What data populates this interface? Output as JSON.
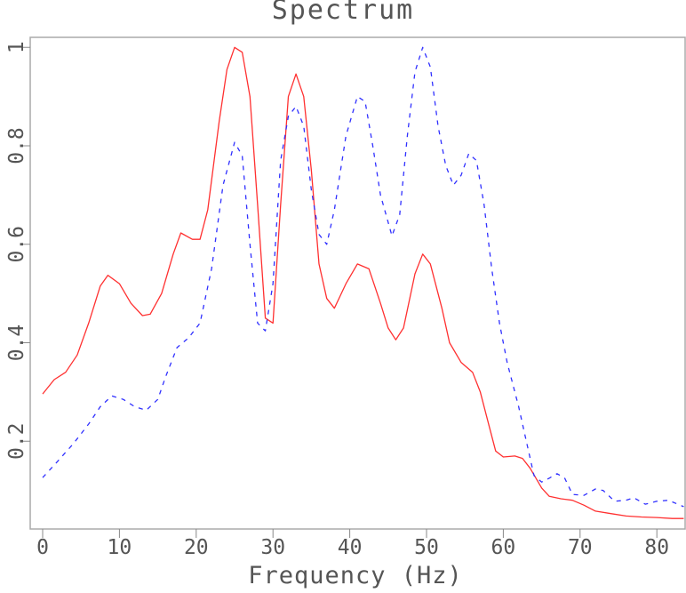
{
  "chart_data": {
    "type": "line",
    "title": "Spectrum",
    "xlabel": "Frequency (Hz)",
    "ylabel": "",
    "xlim": [
      0,
      83.5
    ],
    "ylim": [
      0.04,
      1.0
    ],
    "xticks": [
      0,
      10,
      20,
      30,
      40,
      50,
      60,
      70,
      80
    ],
    "yticks": [
      0.2,
      0.4,
      0.6,
      0.8,
      1
    ],
    "ytick_labels": [
      "0.2",
      "0.4",
      "0.6",
      "0.8",
      "1"
    ],
    "grid": false,
    "legend": null,
    "series": [
      {
        "name": "solid-red",
        "color": "#ff3030",
        "style": "solid",
        "x": [
          0,
          1.5,
          3,
          4.5,
          6,
          7.5,
          8.5,
          10,
          11.5,
          13,
          14,
          15.5,
          17,
          18,
          19.5,
          20.5,
          21.5,
          23,
          24,
          25,
          26,
          27,
          28,
          29,
          30,
          31,
          32,
          33,
          34,
          35,
          36,
          37,
          38,
          39.5,
          41,
          42.5,
          44,
          45,
          46,
          47,
          48.5,
          49.5,
          50.5,
          52,
          53,
          54.5,
          56,
          57,
          58,
          59,
          60,
          61.5,
          62.5,
          63.5,
          65,
          66,
          67.5,
          69,
          70.5,
          72,
          74,
          76,
          78,
          80,
          82,
          83.5
        ],
        "values": [
          0.296,
          0.325,
          0.34,
          0.375,
          0.44,
          0.515,
          0.537,
          0.52,
          0.48,
          0.455,
          0.458,
          0.5,
          0.58,
          0.623,
          0.61,
          0.61,
          0.67,
          0.85,
          0.955,
          1.0,
          0.99,
          0.9,
          0.68,
          0.45,
          0.44,
          0.68,
          0.9,
          0.946,
          0.9,
          0.75,
          0.56,
          0.49,
          0.47,
          0.52,
          0.56,
          0.55,
          0.48,
          0.43,
          0.406,
          0.43,
          0.54,
          0.58,
          0.56,
          0.47,
          0.4,
          0.36,
          0.34,
          0.3,
          0.24,
          0.18,
          0.168,
          0.17,
          0.165,
          0.145,
          0.105,
          0.088,
          0.083,
          0.08,
          0.07,
          0.058,
          0.053,
          0.048,
          0.046,
          0.045,
          0.043,
          0.043
        ]
      },
      {
        "name": "dashed-blue",
        "color": "#3030ff",
        "style": "dashed",
        "x": [
          0,
          2,
          4,
          6,
          7.5,
          9,
          10.5,
          12,
          13.5,
          15,
          16,
          17.5,
          19,
          20.5,
          22,
          23.5,
          25,
          26,
          27,
          28,
          29,
          30,
          31,
          32,
          33,
          34,
          35,
          36,
          37,
          38,
          39.5,
          41,
          42,
          43,
          44,
          45.5,
          46.5,
          47.5,
          48.5,
          49.5,
          50.5,
          51.5,
          52.5,
          53.5,
          54.5,
          55.5,
          56.5,
          57.5,
          58.5,
          59.5,
          60.5,
          62,
          63,
          64,
          65,
          66,
          67,
          68,
          69,
          70.5,
          72,
          73,
          74.5,
          76,
          77,
          78.5,
          80,
          81.5,
          83.5
        ],
        "values": [
          0.126,
          0.16,
          0.195,
          0.235,
          0.27,
          0.292,
          0.285,
          0.27,
          0.263,
          0.285,
          0.33,
          0.39,
          0.41,
          0.44,
          0.55,
          0.72,
          0.807,
          0.78,
          0.6,
          0.44,
          0.424,
          0.52,
          0.77,
          0.86,
          0.88,
          0.84,
          0.71,
          0.62,
          0.6,
          0.67,
          0.82,
          0.9,
          0.89,
          0.8,
          0.7,
          0.617,
          0.66,
          0.82,
          0.95,
          1.0,
          0.96,
          0.84,
          0.76,
          0.72,
          0.74,
          0.784,
          0.77,
          0.68,
          0.55,
          0.44,
          0.36,
          0.27,
          0.2,
          0.13,
          0.117,
          0.125,
          0.134,
          0.125,
          0.092,
          0.09,
          0.103,
          0.1,
          0.078,
          0.08,
          0.085,
          0.072,
          0.078,
          0.08,
          0.067
        ]
      }
    ]
  },
  "axes": {
    "frame_color": "#aaaaaa",
    "tick_color": "#888888"
  }
}
